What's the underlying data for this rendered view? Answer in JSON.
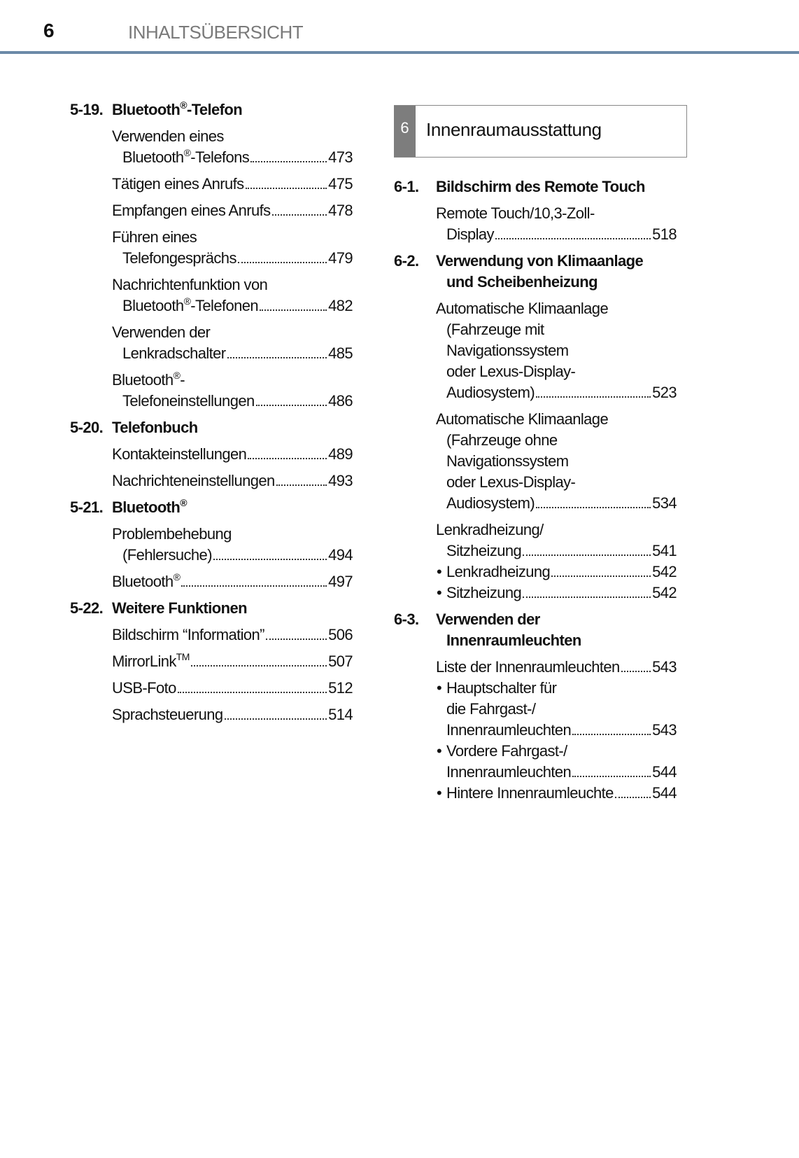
{
  "header": {
    "page_number": "6",
    "title": "INHALTSÜBERSICHT",
    "rule_color": "#6b8aa8"
  },
  "chapter_box": {
    "number": "6",
    "title": "Innenraumausstattung"
  },
  "left_column": [
    {
      "type": "head",
      "num": "5-19.",
      "lines": [
        "Bluetooth®-Telefon"
      ]
    },
    {
      "type": "entry",
      "lines": [
        "Verwenden eines",
        "Bluetooth®-Telefons"
      ],
      "page": "473"
    },
    {
      "type": "entry",
      "lines": [
        "Tätigen eines Anrufs"
      ],
      "page": "475"
    },
    {
      "type": "entry",
      "lines": [
        "Empfangen eines Anrufs"
      ],
      "page": "478"
    },
    {
      "type": "entry",
      "lines": [
        "Führen eines",
        "Telefongesprächs"
      ],
      "page": "479"
    },
    {
      "type": "entry",
      "lines": [
        "Nachrichtenfunktion von",
        "Bluetooth®-Telefonen"
      ],
      "page": "482"
    },
    {
      "type": "entry",
      "lines": [
        "Verwenden der",
        "Lenkradschalter"
      ],
      "page": "485"
    },
    {
      "type": "entry",
      "lines": [
        "Bluetooth®-",
        "Telefoneinstellungen"
      ],
      "page": "486"
    },
    {
      "type": "head",
      "num": "5-20.",
      "lines": [
        "Telefonbuch"
      ]
    },
    {
      "type": "entry",
      "lines": [
        "Kontakteinstellungen"
      ],
      "page": "489"
    },
    {
      "type": "entry",
      "lines": [
        "Nachrichteneinstellungen"
      ],
      "page": "493"
    },
    {
      "type": "head",
      "num": "5-21.",
      "lines": [
        "Bluetooth®"
      ]
    },
    {
      "type": "entry",
      "lines": [
        "Problembehebung",
        "(Fehlersuche)"
      ],
      "page": "494"
    },
    {
      "type": "entry",
      "lines": [
        "Bluetooth®"
      ],
      "page": "497"
    },
    {
      "type": "head",
      "num": "5-22.",
      "lines": [
        "Weitere Funktionen"
      ]
    },
    {
      "type": "entry",
      "lines": [
        "Bildschirm “Information”"
      ],
      "page": "506"
    },
    {
      "type": "entry",
      "lines": [
        "MirrorLink™"
      ],
      "page": "507"
    },
    {
      "type": "entry",
      "lines": [
        "USB-Foto"
      ],
      "page": "512"
    },
    {
      "type": "entry",
      "lines": [
        "Sprachsteuerung"
      ],
      "page": "514"
    }
  ],
  "right_column": [
    {
      "type": "head",
      "num": "6-1.",
      "lines": [
        "Bildschirm des Remote Touch"
      ]
    },
    {
      "type": "entry",
      "lines": [
        "Remote Touch/10,3-Zoll-",
        "Display"
      ],
      "page": "518"
    },
    {
      "type": "head",
      "num": "6-2.",
      "lines": [
        "Verwendung von Klimaanlage",
        "und Scheibenheizung"
      ]
    },
    {
      "type": "entry",
      "lines": [
        "Automatische Klimaanlage",
        "(Fahrzeuge mit",
        "Navigationssystem",
        "oder Lexus-Display-",
        "Audiosystem)"
      ],
      "page": "523"
    },
    {
      "type": "entry",
      "lines": [
        "Automatische Klimaanlage",
        "(Fahrzeuge ohne",
        "Navigationssystem",
        "oder Lexus-Display-",
        "Audiosystem)"
      ],
      "page": "534"
    },
    {
      "type": "entry",
      "lines": [
        "Lenkradheizung/",
        "Sitzheizung"
      ],
      "page": "541",
      "tight": true
    },
    {
      "type": "bullet",
      "lines": [
        "Lenkradheizung"
      ],
      "page": "542",
      "tight": true
    },
    {
      "type": "bullet",
      "lines": [
        "Sitzheizung"
      ],
      "page": "542"
    },
    {
      "type": "head",
      "num": "6-3.",
      "lines": [
        "Verwenden der",
        "Innenraumleuchten"
      ]
    },
    {
      "type": "entry",
      "lines": [
        "Liste der Innenraumleuchten"
      ],
      "page": "543",
      "tight": true
    },
    {
      "type": "bullet",
      "lines": [
        "Hauptschalter für",
        "die Fahrgast-/",
        "Innenraumleuchten"
      ],
      "page": "543",
      "tight": true
    },
    {
      "type": "bullet",
      "lines": [
        "Vordere Fahrgast-/",
        "Innenraumleuchten"
      ],
      "page": "544",
      "tight": true
    },
    {
      "type": "bullet",
      "lines": [
        "Hintere Innenraumleuchte"
      ],
      "page": "544"
    }
  ]
}
